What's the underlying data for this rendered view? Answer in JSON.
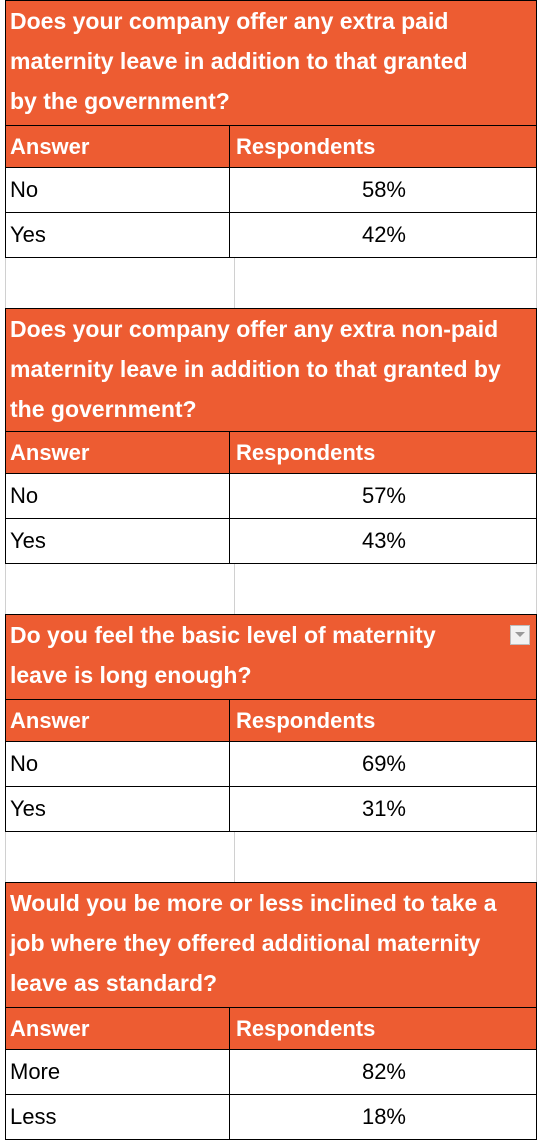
{
  "colors": {
    "header_bg": "#ED5C32",
    "header_text": "#FFFFFF"
  },
  "tables": [
    {
      "question": "Does your company offer any extra paid maternity leave in addition to that granted by the government?",
      "col_answer": "Answer",
      "col_respondents": "Respondents",
      "rows": [
        {
          "answer": "No",
          "value": "58%"
        },
        {
          "answer": "Yes",
          "value": "42%"
        }
      ]
    },
    {
      "question": "Does your company offer any extra non-paid maternity leave in addition to that granted by the government?",
      "col_answer": "Answer",
      "col_respondents": "Respondents",
      "rows": [
        {
          "answer": "No",
          "value": "57%"
        },
        {
          "answer": "Yes",
          "value": "43%"
        }
      ]
    },
    {
      "question": "Do you feel the basic level of maternity leave is long enough?",
      "col_answer": "Answer",
      "col_respondents": "Respondents",
      "filter_icon": "dropdown-filter-icon",
      "rows": [
        {
          "answer": "No",
          "value": "69%"
        },
        {
          "answer": "Yes",
          "value": "31%"
        }
      ]
    },
    {
      "question": "Would you be more or less inclined to take a job where they offered additional maternity leave as standard?",
      "col_answer": "Answer",
      "col_respondents": "Respondents",
      "rows": [
        {
          "answer": "More",
          "value": "82%"
        },
        {
          "answer": "Less",
          "value": "18%"
        }
      ]
    }
  ]
}
